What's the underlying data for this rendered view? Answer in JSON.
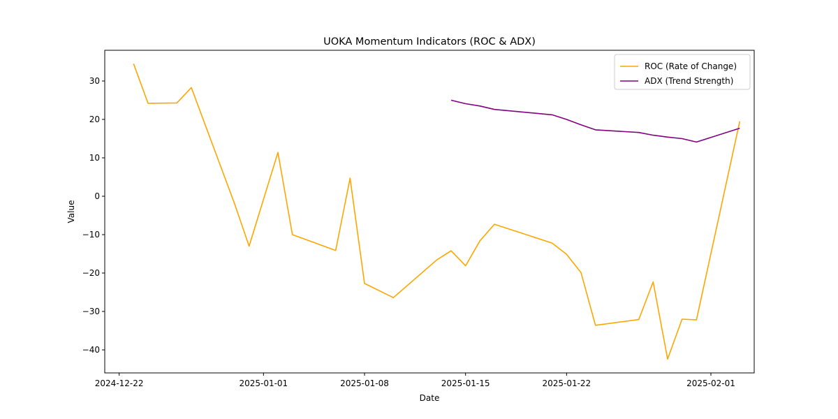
{
  "chart_data": {
    "type": "line",
    "title": "UOKA Momentum Indicators (ROC & ADX)",
    "xlabel": "Date",
    "ylabel": "Value",
    "xlim": [
      "2024-12-21",
      "2025-02-04"
    ],
    "ylim": [
      -46,
      38
    ],
    "x_ticks": [
      "2024-12-22",
      "2025-01-01",
      "2025-01-08",
      "2025-01-15",
      "2025-01-22",
      "2025-02-01"
    ],
    "y_ticks": [
      30,
      20,
      10,
      0,
      -10,
      -20,
      -30,
      -40
    ],
    "y_tick_labels": [
      "30",
      "20",
      "10",
      "0",
      "−10",
      "−20",
      "−30",
      "−40"
    ],
    "legend_position": "top-right",
    "grid": false,
    "series": [
      {
        "name": "ROC (Rate of Change)",
        "color": "#FFA500",
        "points": [
          [
            "2024-12-23",
            34.5
          ],
          [
            "2024-12-24",
            24.2
          ],
          [
            "2024-12-26",
            24.3
          ],
          [
            "2024-12-27",
            28.3
          ],
          [
            "2024-12-30",
            -2.0
          ],
          [
            "2024-12-31",
            -13.0
          ],
          [
            "2025-01-02",
            11.4
          ],
          [
            "2025-01-03",
            -10.0
          ],
          [
            "2025-01-06",
            -14.1
          ],
          [
            "2025-01-07",
            4.7
          ],
          [
            "2025-01-08",
            -22.7
          ],
          [
            "2025-01-10",
            -26.4
          ],
          [
            "2025-01-13",
            -16.6
          ],
          [
            "2025-01-14",
            -14.2
          ],
          [
            "2025-01-15",
            -18.1
          ],
          [
            "2025-01-16",
            -11.6
          ],
          [
            "2025-01-17",
            -7.3
          ],
          [
            "2025-01-21",
            -12.2
          ],
          [
            "2025-01-22",
            -15.1
          ],
          [
            "2025-01-23",
            -19.9
          ],
          [
            "2025-01-24",
            -33.6
          ],
          [
            "2025-01-27",
            -32.1
          ],
          [
            "2025-01-28",
            -22.3
          ],
          [
            "2025-01-29",
            -42.4
          ],
          [
            "2025-01-30",
            -32.0
          ],
          [
            "2025-01-31",
            -32.2
          ],
          [
            "2025-02-03",
            19.5
          ]
        ]
      },
      {
        "name": "ADX (Trend Strength)",
        "color": "#800080",
        "points": [
          [
            "2025-01-14",
            25.0
          ],
          [
            "2025-01-15",
            24.1
          ],
          [
            "2025-01-16",
            23.5
          ],
          [
            "2025-01-17",
            22.6
          ],
          [
            "2025-01-21",
            21.2
          ],
          [
            "2025-01-22",
            20.0
          ],
          [
            "2025-01-23",
            18.6
          ],
          [
            "2025-01-24",
            17.3
          ],
          [
            "2025-01-27",
            16.6
          ],
          [
            "2025-01-28",
            15.9
          ],
          [
            "2025-01-29",
            15.4
          ],
          [
            "2025-01-30",
            15.0
          ],
          [
            "2025-01-31",
            14.1
          ],
          [
            "2025-02-03",
            17.7
          ]
        ]
      }
    ]
  }
}
